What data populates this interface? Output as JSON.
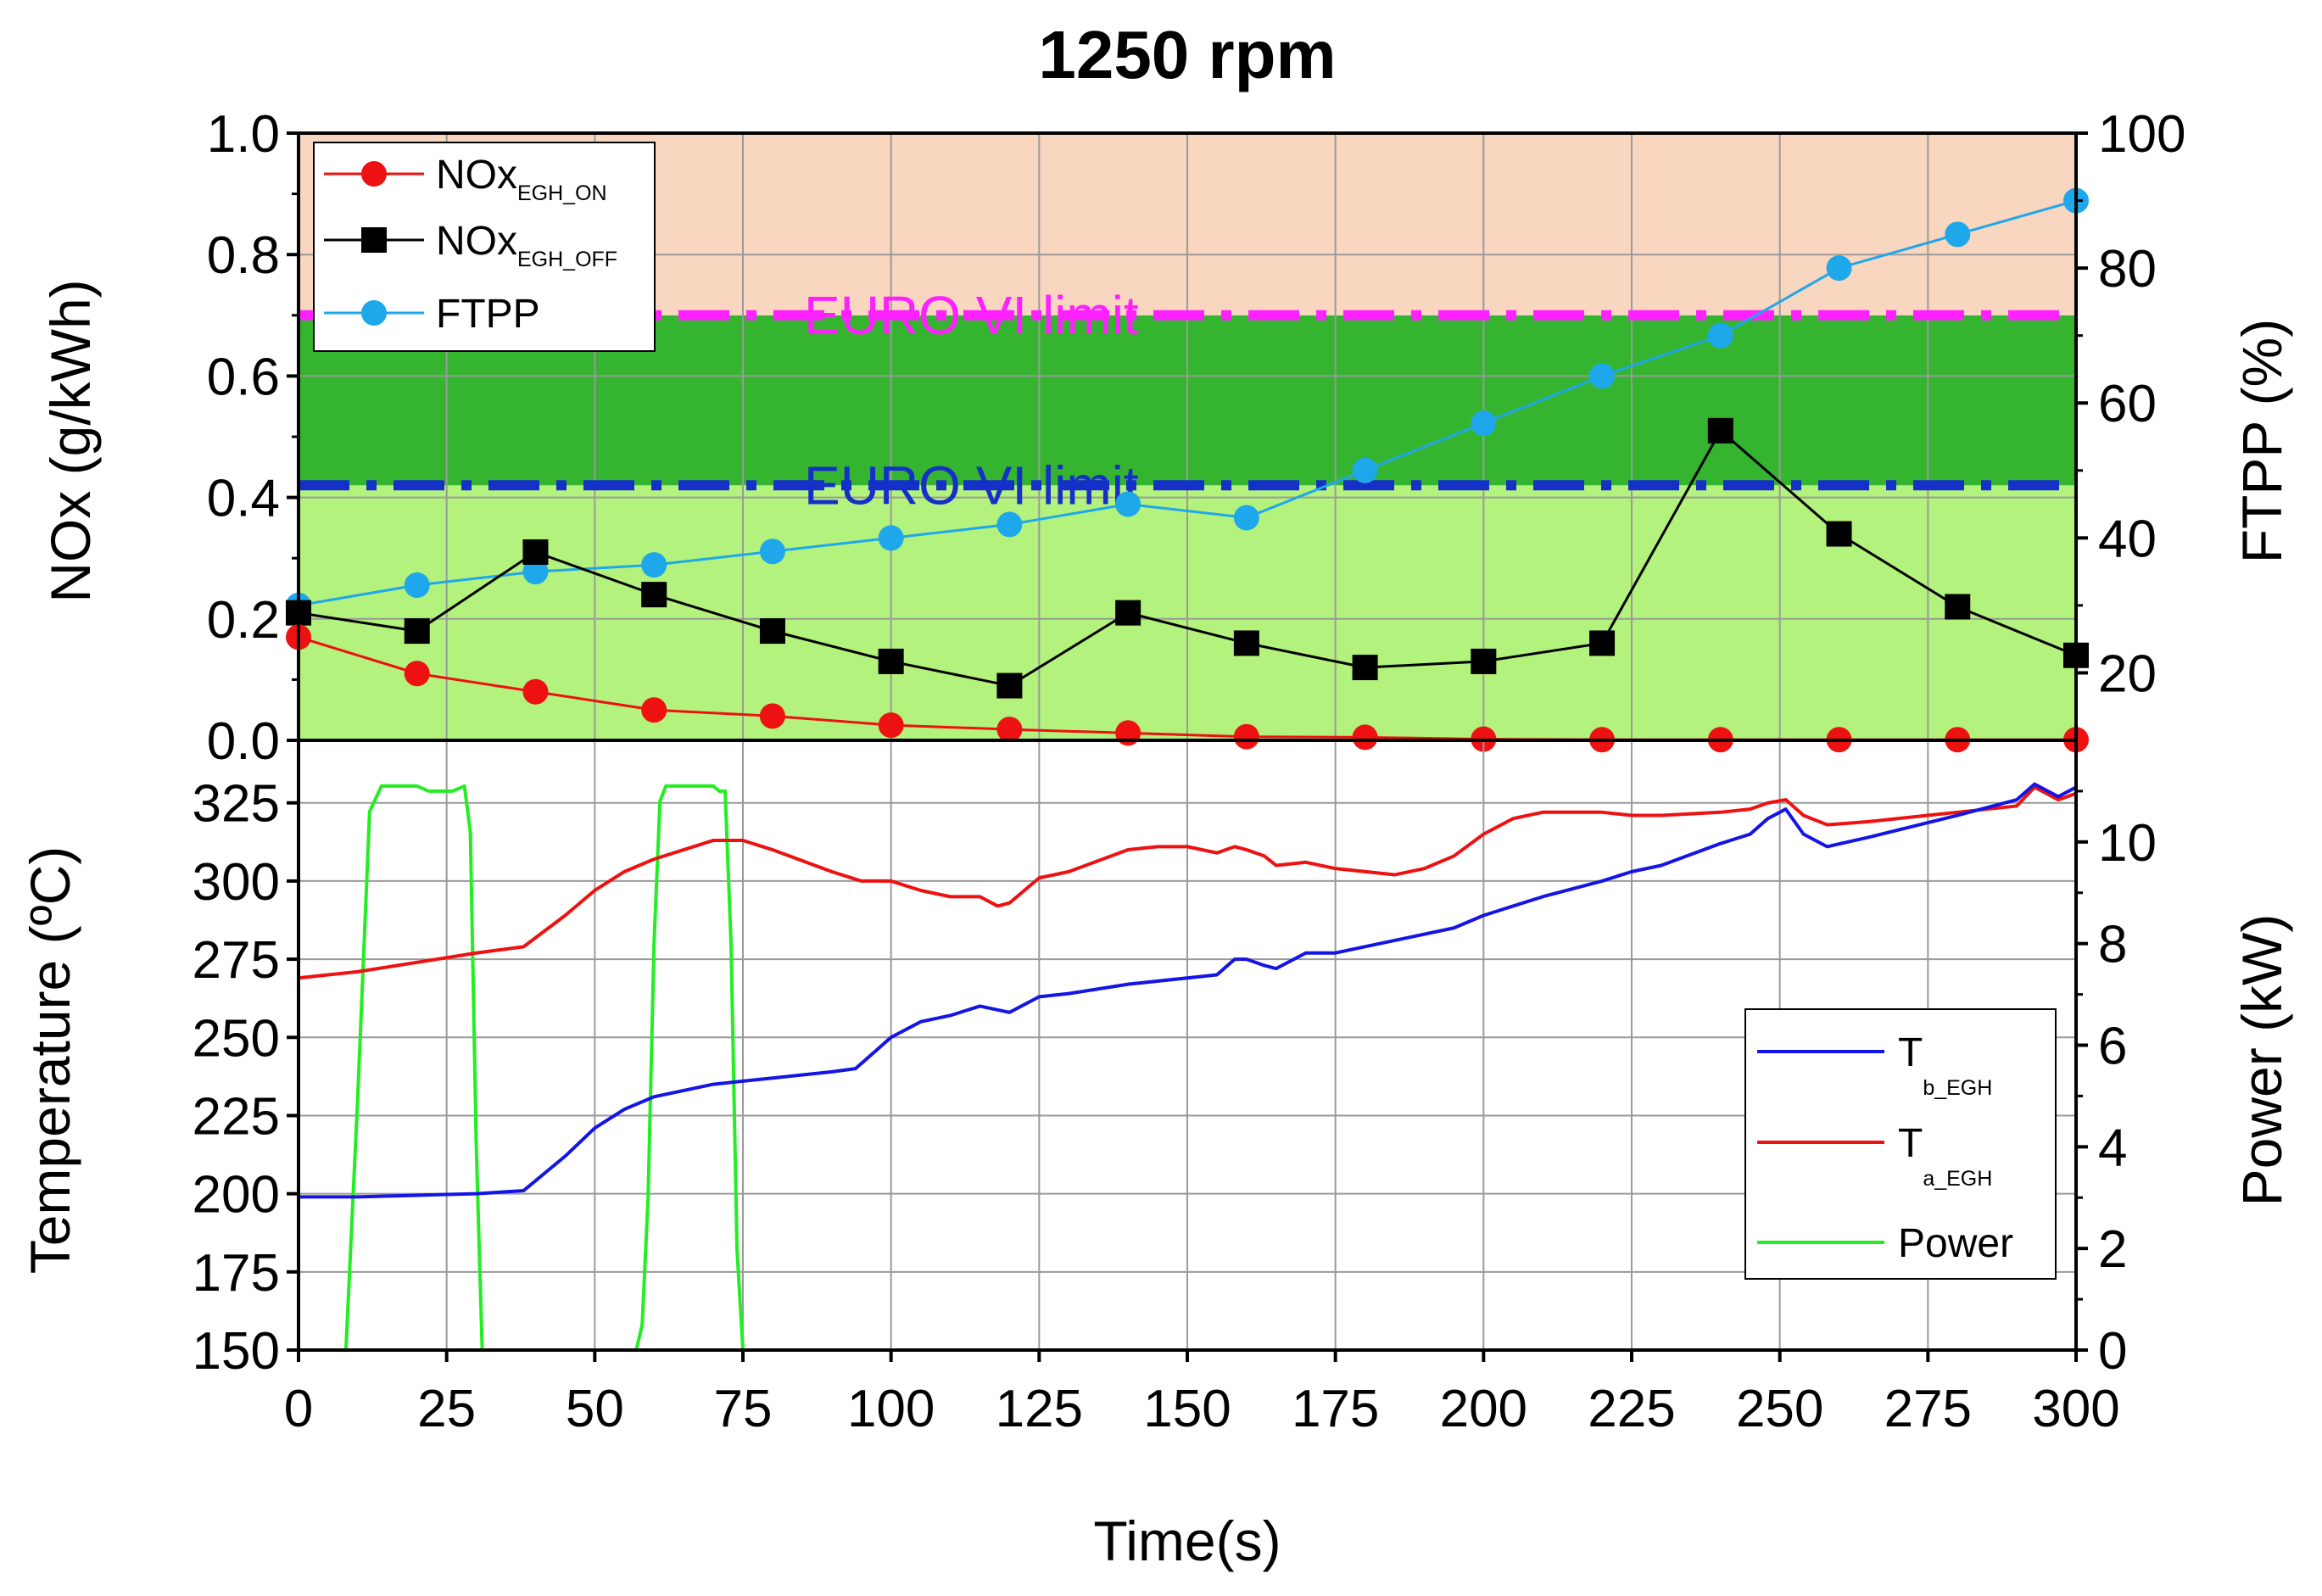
{
  "title": "1250 rpm",
  "colors": {
    "nox_on": "#ee1111",
    "nox_off": "#000000",
    "ftpp": "#1ea7ea",
    "limit1": "#ff20ff",
    "limit2": "#1530c8",
    "t_b": "#1414e6",
    "t_a": "#ee1111",
    "power": "#22ee22",
    "zone_orange": "#f9d6bf",
    "zone_dark_green": "#35b52f",
    "zone_light_green": "#b3f27c"
  },
  "chart_data": [
    {
      "type": "line",
      "panel": "top",
      "title": "1250 rpm",
      "ylabel": "NOx (g/kWh)",
      "y2label": "FTPP (%)",
      "xlim": [
        0,
        300
      ],
      "ylim": [
        0,
        1.0
      ],
      "y2lim": [
        10,
        100
      ],
      "yticks": [
        "0.0",
        "0.2",
        "0.4",
        "0.6",
        "0.8",
        "1.0"
      ],
      "y2ticks": [
        "20",
        "40",
        "60",
        "80",
        "100"
      ],
      "grid": true,
      "legend_position": "top-left",
      "legend": [
        {
          "main": "NOx",
          "sub": "EGH_ON"
        },
        {
          "main": "NOx",
          "sub": "EGH_OFF"
        },
        {
          "main": "FTPP",
          "sub": ""
        }
      ],
      "bands": [
        {
          "from": 0.0,
          "to": 0.42,
          "color": "light-green"
        },
        {
          "from": 0.42,
          "to": 0.7,
          "color": "dark-green"
        },
        {
          "from": 0.7,
          "to": 1.0,
          "color": "orange"
        }
      ],
      "limits": [
        {
          "label": "EURO VI limit",
          "value": 0.7,
          "color": "magenta"
        },
        {
          "label": "EURO VI limit",
          "value": 0.42,
          "color": "blue"
        }
      ],
      "x": [
        0,
        20,
        40,
        60,
        80,
        100,
        120,
        140,
        160,
        180,
        200,
        220,
        240,
        260,
        280,
        300
      ],
      "series": [
        {
          "name": "NOx EGH_ON",
          "axis": "left",
          "values": [
            0.17,
            0.11,
            0.08,
            0.05,
            0.04,
            0.025,
            0.018,
            0.012,
            0.006,
            0.005,
            0.002,
            0.001,
            0.001,
            0.001,
            0.001,
            0.001
          ]
        },
        {
          "name": "NOx EGH_OFF",
          "axis": "left",
          "values": [
            0.21,
            0.18,
            0.31,
            0.24,
            0.18,
            0.13,
            0.09,
            0.21,
            0.16,
            0.12,
            0.13,
            0.16,
            0.51,
            0.34,
            0.22,
            0.14
          ]
        },
        {
          "name": "FTPP",
          "axis": "right",
          "values": [
            30,
            33,
            35,
            36,
            38,
            40,
            42,
            45,
            43,
            50,
            57,
            64,
            70,
            80,
            85,
            90
          ]
        }
      ]
    },
    {
      "type": "line",
      "panel": "bottom",
      "xlabel": "Time(s)",
      "ylabel": "Temperature (ºC)",
      "y2label": "Power (kW)",
      "xlim": [
        0,
        300
      ],
      "ylim": [
        150,
        345
      ],
      "y2lim": [
        0,
        12
      ],
      "xticks": [
        "0",
        "25",
        "50",
        "75",
        "100",
        "125",
        "150",
        "175",
        "200",
        "225",
        "250",
        "275",
        "300"
      ],
      "yticks": [
        "150",
        "175",
        "200",
        "225",
        "250",
        "275",
        "300",
        "325"
      ],
      "y2ticks": [
        "0",
        "2",
        "4",
        "6",
        "8",
        "10"
      ],
      "grid": true,
      "legend_position": "bottom-right",
      "legend": [
        {
          "main": "T",
          "sub": "b_EGH"
        },
        {
          "main": "T",
          "sub": "a_EGH"
        },
        {
          "main": "Power",
          "sub": ""
        }
      ],
      "series": [
        {
          "name": "T b_EGH",
          "axis": "left",
          "x": [
            0,
            10,
            20,
            30,
            38,
            45,
            50,
            55,
            60,
            70,
            80,
            90,
            94,
            100,
            105,
            110,
            115,
            120,
            125,
            130,
            140,
            150,
            155,
            158,
            160,
            163,
            165,
            170,
            175,
            185,
            195,
            200,
            210,
            220,
            225,
            230,
            240,
            245,
            248,
            251,
            254,
            258,
            265,
            280,
            290,
            293,
            297,
            300
          ],
          "values": [
            199,
            199,
            199.5,
            200,
            201,
            212,
            221,
            227,
            231,
            235,
            237,
            239,
            240,
            250,
            255,
            257,
            260,
            258,
            263,
            264,
            267,
            269,
            270,
            275,
            275,
            273,
            272,
            277,
            277,
            281,
            285,
            289,
            295,
            300,
            303,
            305,
            312,
            315,
            320,
            323,
            315,
            311,
            314,
            321,
            326,
            331,
            327,
            330
          ]
        },
        {
          "name": "T a_EGH",
          "axis": "left",
          "x": [
            0,
            10,
            20,
            30,
            38,
            45,
            50,
            55,
            60,
            65,
            70,
            75,
            80,
            90,
            95,
            100,
            105,
            110,
            115,
            118,
            120,
            125,
            130,
            140,
            145,
            150,
            155,
            158,
            160,
            163,
            165,
            170,
            175,
            185,
            190,
            195,
            200,
            205,
            210,
            220,
            225,
            230,
            240,
            245,
            248,
            251,
            254,
            258,
            265,
            280,
            290,
            293,
            297,
            300
          ],
          "values": [
            269,
            271,
            274,
            277,
            279,
            289,
            297,
            303,
            307,
            310,
            313,
            313,
            310,
            303,
            300,
            300,
            297,
            295,
            295,
            292,
            293,
            301,
            303,
            310,
            311,
            311,
            309,
            311,
            310,
            308,
            305,
            306,
            304,
            302,
            304,
            308,
            315,
            320,
            322,
            322,
            321,
            321,
            322,
            323,
            325,
            326,
            321,
            318,
            319,
            322,
            324,
            330,
            326,
            328
          ]
        },
        {
          "name": "Power",
          "axis": "right",
          "x": [
            0,
            8,
            10,
            12,
            14,
            16,
            18,
            20,
            22,
            24,
            26,
            28,
            29,
            30,
            31,
            57,
            58,
            59,
            60,
            61,
            62,
            64,
            66,
            68,
            70,
            71,
            72,
            73,
            74,
            75,
            300
          ],
          "values": [
            0,
            0,
            5,
            10.6,
            11.1,
            11.1,
            11.1,
            11.1,
            11.0,
            11.0,
            11.0,
            11.1,
            10.2,
            4,
            0,
            0,
            0.5,
            3,
            8,
            10.8,
            11.1,
            11.1,
            11.1,
            11.1,
            11.1,
            11.0,
            11.0,
            8,
            2,
            0,
            0
          ]
        }
      ]
    }
  ]
}
